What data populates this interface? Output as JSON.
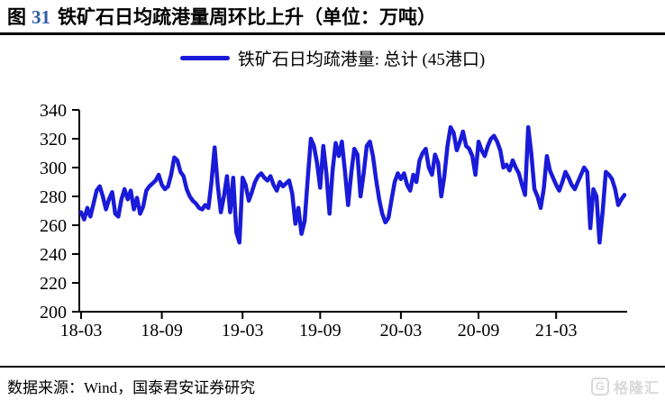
{
  "title": {
    "prefix": "图",
    "number": "31",
    "rest": "铁矿石日均疏港量周环比上升（单位：万吨）"
  },
  "legend": {
    "label": "铁矿石日均疏港量: 总计 (45港口)"
  },
  "source": {
    "text": "数据来源：Wind，国泰君安证券研究"
  },
  "watermark": {
    "icon": "G",
    "text": "格隆汇"
  },
  "colors": {
    "line": "#1a1ad9",
    "accent_number": "#2e5ca8",
    "axis": "#000000",
    "watermark": "#d9d9d9"
  },
  "chart_data": {
    "type": "line",
    "title": "铁矿石日均疏港量周环比上升（单位：万吨）",
    "xlabel": "",
    "ylabel": "",
    "ylim": [
      200,
      340
    ],
    "y_ticks": [
      200,
      220,
      240,
      260,
      280,
      300,
      320,
      340
    ],
    "x_ticks": [
      "18-03",
      "18-09",
      "19-03",
      "19-09",
      "20-03",
      "20-09",
      "21-03"
    ],
    "x_tick_indices": [
      0,
      26,
      52,
      77,
      103,
      128,
      153
    ],
    "grid": false,
    "legend_position": "top-center",
    "frequency": "weekly, 2018-03 to 2021-08",
    "series": [
      {
        "name": "铁矿石日均疏港量: 总计 (45港口)",
        "color": "#1a1ad9",
        "values": [
          269,
          264,
          272,
          266,
          275,
          284,
          287,
          280,
          271,
          278,
          283,
          268,
          266,
          278,
          285,
          278,
          284,
          271,
          279,
          268,
          273,
          284,
          287,
          289,
          291,
          295,
          288,
          285,
          287,
          295,
          307,
          305,
          297,
          294,
          285,
          280,
          277,
          275,
          272,
          271,
          274,
          272,
          290,
          314,
          288,
          269,
          280,
          294,
          269,
          293,
          255,
          248,
          293,
          288,
          277,
          283,
          290,
          294,
          296,
          293,
          291,
          294,
          288,
          284,
          290,
          287,
          289,
          291,
          282,
          261,
          272,
          254,
          263,
          292,
          320,
          315,
          303,
          286,
          315,
          296,
          268,
          298,
          317,
          308,
          318,
          297,
          274,
          296,
          313,
          309,
          280,
          296,
          315,
          318,
          308,
          292,
          278,
          268,
          262,
          265,
          278,
          290,
          296,
          292,
          296,
          288,
          284,
          295,
          290,
          305,
          310,
          313,
          300,
          295,
          309,
          303,
          280,
          294,
          315,
          328,
          324,
          312,
          318,
          325,
          315,
          313,
          308,
          295,
          318,
          312,
          308,
          315,
          320,
          322,
          318,
          312,
          300,
          302,
          298,
          305,
          300,
          296,
          288,
          281,
          328,
          310,
          285,
          280,
          272,
          285,
          308,
          298,
          293,
          288,
          284,
          290,
          297,
          293,
          288,
          285,
          290,
          295,
          300,
          297,
          258,
          285,
          280,
          248,
          270,
          297,
          295,
          292,
          285,
          274,
          278,
          281
        ]
      }
    ]
  }
}
